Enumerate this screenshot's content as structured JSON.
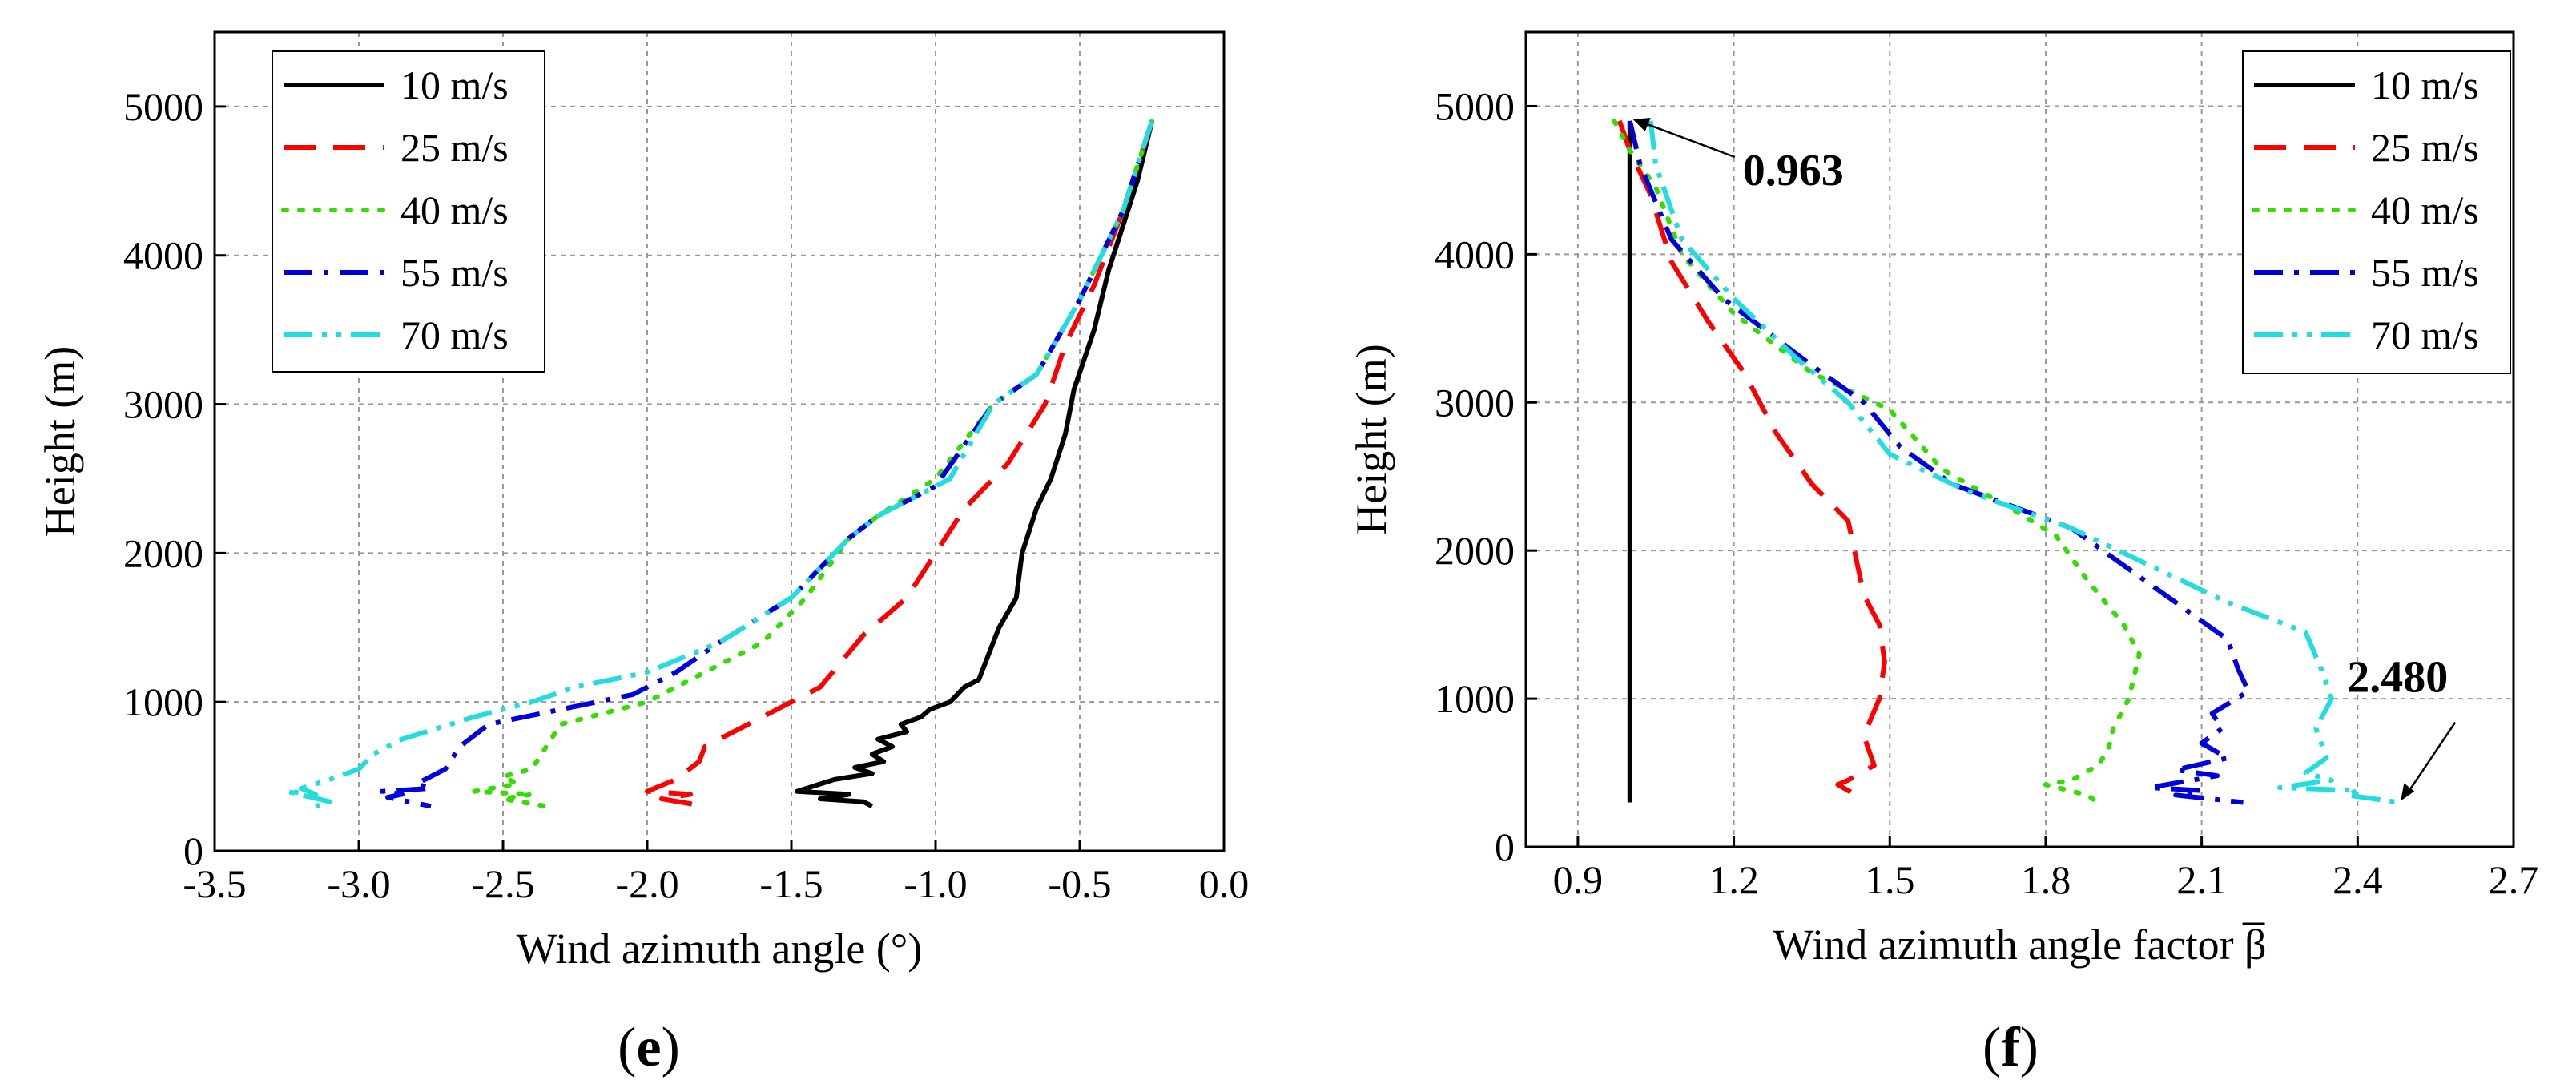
{
  "chart_data": [
    {
      "type": "line",
      "panel_label_open": "(",
      "panel_label_letter": "e",
      "panel_label_close": ")",
      "xlabel": "Wind azimuth angle (°)",
      "ylabel": "Height (m)",
      "xlim": [
        -3.5,
        0.0
      ],
      "ylim": [
        0,
        5500
      ],
      "grid": true,
      "legend_position": "top-left",
      "x_ticks": [
        -3.5,
        -3.0,
        -2.5,
        -2.0,
        -1.5,
        -1.0,
        -0.5,
        0.0
      ],
      "x_tick_labels": [
        "-3.5",
        "-3.0",
        "-2.5",
        "-2.0",
        "-1.5",
        "-1.0",
        "-0.5",
        "0.0"
      ],
      "y_ticks": [
        0,
        1000,
        2000,
        3000,
        4000,
        5000
      ],
      "y_tick_labels": [
        "0",
        "1000",
        "2000",
        "3000",
        "4000",
        "5000"
      ],
      "series": [
        {
          "name": "10 m/s",
          "color": "#000000",
          "dash": "solid",
          "points": [
            [
              -0.25,
              4900
            ],
            [
              -0.3,
              4500
            ],
            [
              -0.35,
              4200
            ],
            [
              -0.4,
              3900
            ],
            [
              -0.45,
              3500
            ],
            [
              -0.52,
              3100
            ],
            [
              -0.55,
              2800
            ],
            [
              -0.6,
              2500
            ],
            [
              -0.65,
              2300
            ],
            [
              -0.7,
              2000
            ],
            [
              -0.72,
              1700
            ],
            [
              -0.78,
              1500
            ],
            [
              -0.82,
              1300
            ],
            [
              -0.85,
              1150
            ],
            [
              -0.9,
              1100
            ],
            [
              -0.95,
              1000
            ],
            [
              -1.02,
              950
            ],
            [
              -1.05,
              900
            ],
            [
              -1.12,
              850
            ],
            [
              -1.1,
              800
            ],
            [
              -1.2,
              750
            ],
            [
              -1.15,
              700
            ],
            [
              -1.22,
              650
            ],
            [
              -1.18,
              600
            ],
            [
              -1.28,
              560
            ],
            [
              -1.22,
              520
            ],
            [
              -1.35,
              480
            ],
            [
              -1.48,
              400
            ],
            [
              -1.3,
              380
            ],
            [
              -1.4,
              350
            ],
            [
              -1.25,
              330
            ],
            [
              -1.22,
              300
            ]
          ]
        },
        {
          "name": "25 m/s",
          "color": "#ff0000",
          "dash": "long",
          "points": [
            [
              -0.25,
              4900
            ],
            [
              -0.35,
              4300
            ],
            [
              -0.45,
              3800
            ],
            [
              -0.55,
              3400
            ],
            [
              -0.62,
              3000
            ],
            [
              -0.75,
              2600
            ],
            [
              -0.9,
              2300
            ],
            [
              -1.0,
              2000
            ],
            [
              -1.1,
              1700
            ],
            [
              -1.25,
              1450
            ],
            [
              -1.4,
              1100
            ],
            [
              -1.55,
              950
            ],
            [
              -1.75,
              750
            ],
            [
              -1.8,
              700
            ],
            [
              -1.82,
              600
            ],
            [
              -1.9,
              480
            ],
            [
              -2.0,
              400
            ],
            [
              -1.85,
              380
            ],
            [
              -1.95,
              350
            ],
            [
              -1.8,
              300
            ]
          ]
        },
        {
          "name": "40 m/s",
          "color": "#33dd00",
          "dash": "dot",
          "points": [
            [
              -0.25,
              4900
            ],
            [
              -0.35,
              4300
            ],
            [
              -0.5,
              3700
            ],
            [
              -0.65,
              3200
            ],
            [
              -0.8,
              3000
            ],
            [
              -1.0,
              2500
            ],
            [
              -1.2,
              2250
            ],
            [
              -1.3,
              2100
            ],
            [
              -1.45,
              1700
            ],
            [
              -1.6,
              1400
            ],
            [
              -1.8,
              1200
            ],
            [
              -2.0,
              1000
            ],
            [
              -2.3,
              850
            ],
            [
              -2.35,
              700
            ],
            [
              -2.4,
              550
            ],
            [
              -2.5,
              500
            ],
            [
              -2.45,
              450
            ],
            [
              -2.6,
              400
            ],
            [
              -2.4,
              380
            ],
            [
              -2.5,
              350
            ],
            [
              -2.35,
              300
            ]
          ]
        },
        {
          "name": "55 m/s",
          "color": "#0000dd",
          "dash": "dashdot",
          "points": [
            [
              -0.25,
              4900
            ],
            [
              -0.35,
              4300
            ],
            [
              -0.5,
              3700
            ],
            [
              -0.65,
              3200
            ],
            [
              -0.8,
              3000
            ],
            [
              -1.0,
              2450
            ],
            [
              -1.2,
              2250
            ],
            [
              -1.3,
              2100
            ],
            [
              -1.5,
              1700
            ],
            [
              -1.75,
              1400
            ],
            [
              -1.9,
              1200
            ],
            [
              -2.05,
              1050
            ],
            [
              -2.3,
              950
            ],
            [
              -2.55,
              850
            ],
            [
              -2.65,
              700
            ],
            [
              -2.7,
              550
            ],
            [
              -2.8,
              450
            ],
            [
              -2.75,
              420
            ],
            [
              -2.92,
              400
            ],
            [
              -2.85,
              380
            ],
            [
              -2.9,
              360
            ],
            [
              -2.75,
              300
            ]
          ]
        },
        {
          "name": "70 m/s",
          "color": "#22dddd",
          "dash": "dashdotdot",
          "points": [
            [
              -0.25,
              4900
            ],
            [
              -0.35,
              4300
            ],
            [
              -0.5,
              3700
            ],
            [
              -0.65,
              3200
            ],
            [
              -0.8,
              3000
            ],
            [
              -0.95,
              2500
            ],
            [
              -1.2,
              2250
            ],
            [
              -1.3,
              2100
            ],
            [
              -1.5,
              1700
            ],
            [
              -1.75,
              1400
            ],
            [
              -2.0,
              1200
            ],
            [
              -2.25,
              1100
            ],
            [
              -2.4,
              1000
            ],
            [
              -2.6,
              900
            ],
            [
              -2.85,
              750
            ],
            [
              -2.95,
              650
            ],
            [
              -3.0,
              550
            ],
            [
              -3.1,
              480
            ],
            [
              -3.2,
              420
            ],
            [
              -3.15,
              380
            ],
            [
              -3.25,
              400
            ],
            [
              -3.1,
              330
            ],
            [
              -3.15,
              300
            ]
          ]
        }
      ]
    },
    {
      "type": "line",
      "panel_label_open": "(",
      "panel_label_letter": "f",
      "panel_label_close": ")",
      "xlabel": "Wind azimuth angle factor β",
      "ylabel": "Height (m)",
      "xlim": [
        0.8,
        2.7
      ],
      "ylim": [
        0,
        5500
      ],
      "grid": true,
      "legend_position": "top-right",
      "x_ticks": [
        0.9,
        1.2,
        1.5,
        1.8,
        2.1,
        2.4,
        2.7
      ],
      "x_tick_labels": [
        "0.9",
        "1.2",
        "1.5",
        "1.8",
        "2.1",
        "2.4",
        "2.7"
      ],
      "y_ticks": [
        0,
        1000,
        2000,
        3000,
        4000,
        5000
      ],
      "y_tick_labels": [
        "0",
        "1000",
        "2000",
        "3000",
        "4000",
        "5000"
      ],
      "annotations": [
        {
          "text": "0.963",
          "x": 0.963,
          "y": 4900
        },
        {
          "text": "2.480",
          "x": 2.48,
          "y": 300
        }
      ],
      "series": [
        {
          "name": "10 m/s",
          "color": "#000000",
          "dash": "solid",
          "points": [
            [
              1.0,
              4900
            ],
            [
              1.0,
              4000
            ],
            [
              1.0,
              3000
            ],
            [
              1.0,
              2000
            ],
            [
              1.0,
              1000
            ],
            [
              1.0,
              300
            ]
          ]
        },
        {
          "name": "25 m/s",
          "color": "#ff0000",
          "dash": "long",
          "points": [
            [
              0.98,
              4900
            ],
            [
              1.0,
              4700
            ],
            [
              1.04,
              4400
            ],
            [
              1.08,
              3950
            ],
            [
              1.15,
              3550
            ],
            [
              1.22,
              3200
            ],
            [
              1.28,
              2800
            ],
            [
              1.35,
              2450
            ],
            [
              1.42,
              2200
            ],
            [
              1.45,
              1700
            ],
            [
              1.48,
              1500
            ],
            [
              1.49,
              1250
            ],
            [
              1.48,
              1000
            ],
            [
              1.45,
              750
            ],
            [
              1.47,
              550
            ],
            [
              1.42,
              450
            ],
            [
              1.4,
              420
            ],
            [
              1.43,
              360
            ],
            [
              1.45,
              300
            ]
          ]
        },
        {
          "name": "40 m/s",
          "color": "#33dd00",
          "dash": "dot",
          "points": [
            [
              0.97,
              4900
            ],
            [
              1.0,
              4700
            ],
            [
              1.05,
              4450
            ],
            [
              1.1,
              4000
            ],
            [
              1.2,
              3600
            ],
            [
              1.35,
              3200
            ],
            [
              1.5,
              2950
            ],
            [
              1.6,
              2550
            ],
            [
              1.75,
              2250
            ],
            [
              1.82,
              2100
            ],
            [
              1.88,
              1800
            ],
            [
              1.95,
              1500
            ],
            [
              1.98,
              1300
            ],
            [
              1.96,
              1000
            ],
            [
              1.93,
              800
            ],
            [
              1.92,
              650
            ],
            [
              1.9,
              550
            ],
            [
              1.85,
              450
            ],
            [
              1.8,
              420
            ],
            [
              1.88,
              350
            ],
            [
              1.9,
              300
            ]
          ]
        },
        {
          "name": "55 m/s",
          "color": "#0000dd",
          "dash": "dashdot",
          "points": [
            [
              1.0,
              4900
            ],
            [
              1.02,
              4600
            ],
            [
              1.08,
              4100
            ],
            [
              1.18,
              3700
            ],
            [
              1.35,
              3250
            ],
            [
              1.45,
              3000
            ],
            [
              1.52,
              2700
            ],
            [
              1.62,
              2450
            ],
            [
              1.85,
              2150
            ],
            [
              1.95,
              1900
            ],
            [
              2.05,
              1650
            ],
            [
              2.15,
              1400
            ],
            [
              2.17,
              1200
            ],
            [
              2.19,
              1050
            ],
            [
              2.12,
              900
            ],
            [
              2.14,
              800
            ],
            [
              2.1,
              700
            ],
            [
              2.15,
              600
            ],
            [
              2.05,
              520
            ],
            [
              2.13,
              480
            ],
            [
              2.0,
              400
            ],
            [
              2.1,
              380
            ],
            [
              2.05,
              350
            ],
            [
              2.18,
              300
            ]
          ]
        },
        {
          "name": "70 m/s",
          "color": "#22dddd",
          "dash": "dashdotdot",
          "points": [
            [
              1.04,
              4900
            ],
            [
              1.05,
              4600
            ],
            [
              1.1,
              4100
            ],
            [
              1.2,
              3700
            ],
            [
              1.32,
              3300
            ],
            [
              1.42,
              3000
            ],
            [
              1.5,
              2650
            ],
            [
              1.65,
              2400
            ],
            [
              1.85,
              2150
            ],
            [
              2.0,
              1900
            ],
            [
              2.15,
              1650
            ],
            [
              2.3,
              1450
            ],
            [
              2.33,
              1200
            ],
            [
              2.35,
              1000
            ],
            [
              2.32,
              800
            ],
            [
              2.34,
              600
            ],
            [
              2.3,
              500
            ],
            [
              2.35,
              450
            ],
            [
              2.25,
              400
            ],
            [
              2.4,
              380
            ],
            [
              2.38,
              350
            ],
            [
              2.48,
              300
            ]
          ]
        }
      ],
      "legend_names": [
        "10 m/s",
        "25 m/s",
        "40 m/s",
        "55 m/s",
        "70 m/s"
      ]
    }
  ]
}
